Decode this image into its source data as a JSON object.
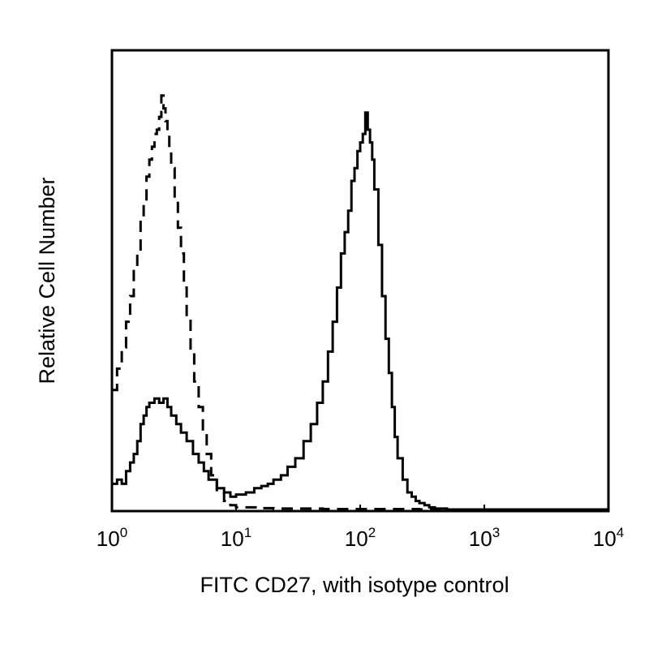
{
  "chart_data": {
    "type": "line",
    "title": "",
    "xlabel": "FITC CD27, with isotype control",
    "ylabel": "Relative Cell Number",
    "x_scale": "log",
    "xlim": [
      1,
      10000
    ],
    "ylim": [
      0,
      1
    ],
    "grid": false,
    "legend": "none",
    "x_ticks": [
      {
        "value": 1,
        "base": "10",
        "exp": "0"
      },
      {
        "value": 10,
        "base": "10",
        "exp": "1"
      },
      {
        "value": 100,
        "base": "10",
        "exp": "2"
      },
      {
        "value": 1000,
        "base": "10",
        "exp": "3"
      },
      {
        "value": 10000,
        "base": "10",
        "exp": "4"
      }
    ],
    "series": [
      {
        "style": "dashed",
        "color": "#000000",
        "x": [
          1.0,
          1.1,
          1.2,
          1.3,
          1.4,
          1.5,
          1.6,
          1.7,
          1.8,
          1.9,
          2.0,
          2.1,
          2.2,
          2.3,
          2.4,
          2.5,
          2.6,
          2.7,
          2.8,
          2.9,
          3.0,
          3.2,
          3.4,
          3.6,
          3.8,
          4.0,
          4.3,
          4.6,
          5.0,
          5.4,
          5.8,
          6.3,
          7.0,
          8.0,
          9.0,
          10.0,
          15,
          20,
          30,
          50,
          100,
          300,
          1000,
          10000
        ],
        "y": [
          0.28,
          0.33,
          0.38,
          0.44,
          0.5,
          0.57,
          0.6,
          0.68,
          0.72,
          0.78,
          0.82,
          0.85,
          0.88,
          0.89,
          0.92,
          0.97,
          0.94,
          0.91,
          0.88,
          0.84,
          0.8,
          0.73,
          0.66,
          0.6,
          0.52,
          0.45,
          0.37,
          0.3,
          0.24,
          0.18,
          0.13,
          0.08,
          0.04,
          0.02,
          0.01,
          0.005,
          0.003,
          0.002,
          0.002,
          0.001,
          0.001,
          0.0,
          0.0,
          0.0
        ]
      },
      {
        "style": "solid",
        "color": "#000000",
        "x": [
          1.0,
          1.1,
          1.2,
          1.3,
          1.4,
          1.5,
          1.6,
          1.7,
          1.8,
          1.9,
          2.0,
          2.2,
          2.4,
          2.6,
          2.8,
          3.0,
          3.3,
          3.6,
          4.0,
          4.5,
          5.0,
          5.5,
          6.0,
          7.0,
          8.0,
          9.0,
          10,
          12,
          14,
          16,
          18,
          20,
          23,
          26,
          30,
          35,
          40,
          45,
          50,
          55,
          60,
          65,
          70,
          75,
          80,
          85,
          90,
          95,
          100,
          105,
          110,
          115,
          120,
          125,
          130,
          140,
          150,
          160,
          170,
          180,
          190,
          200,
          220,
          240,
          260,
          280,
          300,
          330,
          360,
          400,
          500,
          1000,
          10000
        ],
        "y": [
          0.06,
          0.07,
          0.06,
          0.09,
          0.11,
          0.13,
          0.16,
          0.2,
          0.22,
          0.24,
          0.25,
          0.26,
          0.25,
          0.26,
          0.24,
          0.22,
          0.2,
          0.18,
          0.16,
          0.13,
          0.11,
          0.09,
          0.07,
          0.05,
          0.04,
          0.03,
          0.035,
          0.04,
          0.05,
          0.055,
          0.06,
          0.07,
          0.08,
          0.1,
          0.12,
          0.16,
          0.2,
          0.25,
          0.3,
          0.37,
          0.44,
          0.52,
          0.6,
          0.65,
          0.7,
          0.77,
          0.8,
          0.84,
          0.86,
          0.88,
          0.93,
          0.89,
          0.86,
          0.82,
          0.75,
          0.62,
          0.5,
          0.4,
          0.32,
          0.24,
          0.17,
          0.12,
          0.07,
          0.04,
          0.03,
          0.02,
          0.015,
          0.01,
          0.005,
          0.002,
          0.0,
          0.0,
          0.0
        ]
      }
    ]
  }
}
